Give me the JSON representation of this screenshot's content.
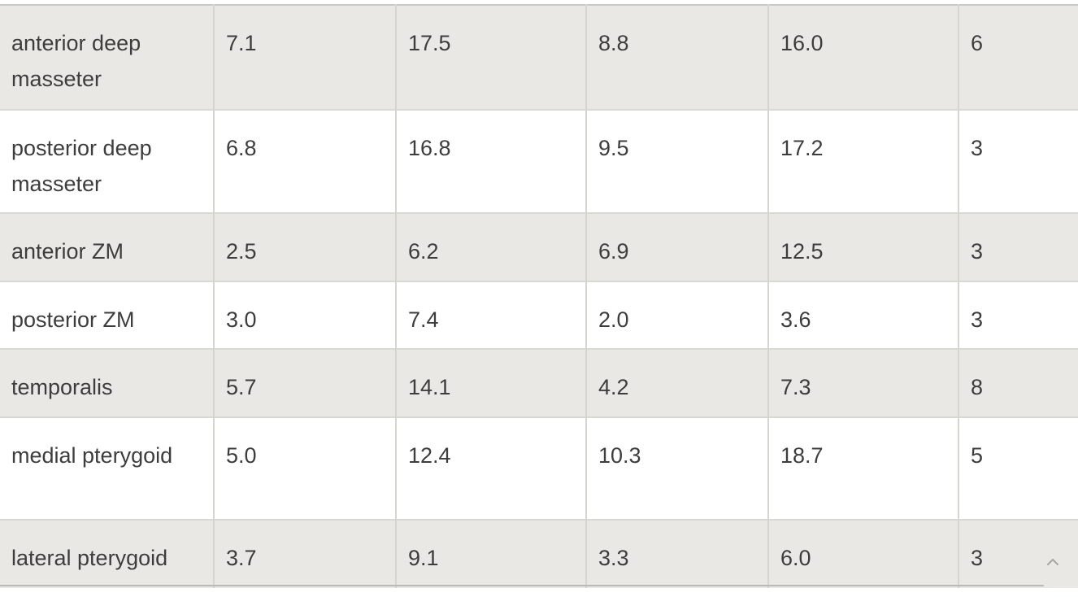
{
  "table": {
    "rows": [
      [
        "anterior deep masseter",
        "7.1",
        "17.5",
        "8.8",
        "16.0",
        "6"
      ],
      [
        "posterior deep masseter",
        "6.8",
        "16.8",
        "9.5",
        "17.2",
        "3"
      ],
      [
        "anterior ZM",
        "2.5",
        "6.2",
        "6.9",
        "12.5",
        "3"
      ],
      [
        "posterior ZM",
        "3.0",
        "7.4",
        "2.0",
        "3.6",
        "3"
      ],
      [
        "temporalis",
        "5.7",
        "14.1",
        "4.2",
        "7.3",
        "8"
      ],
      [
        "medial pterygoid",
        "5.0",
        "12.4",
        "10.3",
        "18.7",
        "5"
      ],
      [
        "lateral pterygoid",
        "3.7",
        "9.1",
        "3.3",
        "6.0",
        "3"
      ]
    ]
  },
  "icons": {
    "scroll_top": "chevron-up-icon"
  },
  "colors": {
    "shaded_row": "#e9e8e4",
    "plain_row": "#ffffff",
    "text": "#3d3d3d"
  }
}
